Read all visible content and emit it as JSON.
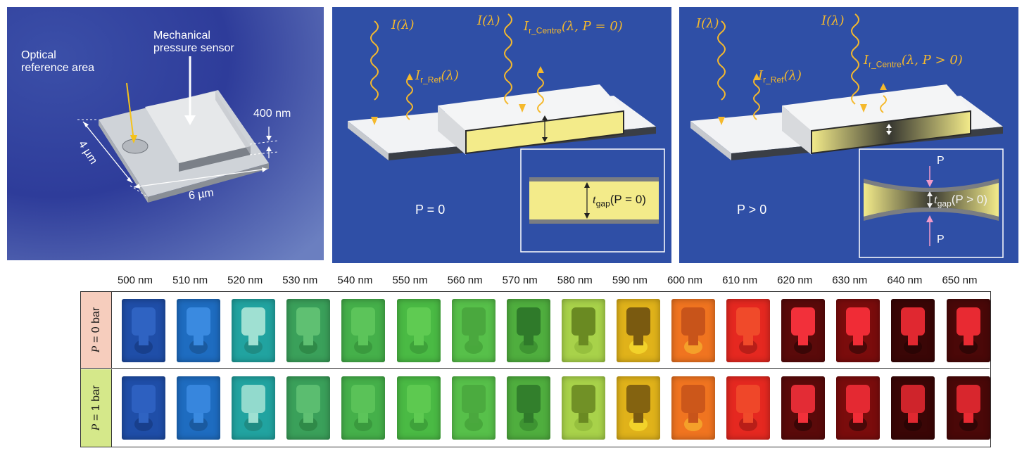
{
  "panel_a": {
    "optical_label": [
      "Optical",
      "reference area"
    ],
    "sensor_label": [
      "Mechanical",
      "pressure sensor"
    ],
    "height_label": "400 nm",
    "width_label": "4 µm",
    "length_label": "6 µm"
  },
  "panel_b": {
    "incident_left": "I(λ)",
    "incident_right": "I(λ)",
    "reflect_ref": "I",
    "reflect_ref_sub": "r_Ref",
    "reflect_ref_tail": "(λ)",
    "reflect_centre": "I",
    "reflect_centre_sub": "r_Centre",
    "reflect_centre_tail": "(λ, P = 0)",
    "pressure_label": "P = 0",
    "inset_t": "t",
    "inset_sub": "gap",
    "inset_tail": "(P = 0)"
  },
  "panel_c": {
    "incident_left": "I(λ)",
    "incident_right": "I(λ)",
    "reflect_ref": "I",
    "reflect_ref_sub": "r_Ref",
    "reflect_ref_tail": "(λ)",
    "reflect_centre": "I",
    "reflect_centre_sub": "r_Centre",
    "reflect_centre_tail": "(λ, P > 0)",
    "pressure_label": "P > 0",
    "inset_t": "t",
    "inset_sub": "gap",
    "inset_tail": "(P > 0)",
    "p_top": "P",
    "p_bottom": "P"
  },
  "grid": {
    "wavelengths": [
      "500 nm",
      "510 nm",
      "520 nm",
      "530 nm",
      "540 nm",
      "550 nm",
      "560 nm",
      "570 nm",
      "580 nm",
      "590 nm",
      "600 nm",
      "610 nm",
      "620 nm",
      "630 nm",
      "640 nm",
      "650 nm"
    ],
    "rows": [
      {
        "label_p": "P",
        "label_rest": " = 0 bar",
        "band_color": "#f6cdbd"
      },
      {
        "label_p": "P",
        "label_rest": " = 1 bar",
        "band_color": "#d5e88a"
      }
    ],
    "chip_colors": [
      {
        "bg": "#1f4ea8",
        "pad": "#2f63c2",
        "ring": "#183f8c"
      },
      {
        "bg": "#1e6cc0",
        "pad": "#3a8ae0",
        "ring": "#1a5aa0"
      },
      {
        "bg": "#21a3a0",
        "pad": "#9fe0d2",
        "ring": "#1f8c84"
      },
      {
        "bg": "#3aa05a",
        "pad": "#5fc072",
        "ring": "#2f8a48"
      },
      {
        "bg": "#45b04a",
        "pad": "#5cc45a",
        "ring": "#3a9a3e"
      },
      {
        "bg": "#4aba44",
        "pad": "#5fcb52",
        "ring": "#3ea23a"
      },
      {
        "bg": "#57c04a",
        "pad": "#4aa83e",
        "ring": "#48a83c"
      },
      {
        "bg": "#4fae3e",
        "pad": "#2f7a2a",
        "ring": "#3e9432"
      },
      {
        "bg": "#a8d24a",
        "pad": "#6a8a22",
        "ring": "#96c03e"
      },
      {
        "bg": "#e0b21a",
        "pad": "#7a5a10",
        "ring": "#f2d22a"
      },
      {
        "bg": "#f07420",
        "pad": "#c8541a",
        "ring": "#f4a02a"
      },
      {
        "bg": "#e52820",
        "pad": "#f04a2a",
        "ring": "#b81e18"
      },
      {
        "bg": "#5a0a0a",
        "pad": "#f2303a",
        "ring": "#3a0606"
      },
      {
        "bg": "#7a0c0c",
        "pad": "#f02c36",
        "ring": "#4a0808"
      },
      {
        "bg": "#3a0606",
        "pad": "#e02830",
        "ring": "#2a0404"
      },
      {
        "bg": "#4a0808",
        "pad": "#e82a32",
        "ring": "#300505"
      }
    ]
  }
}
